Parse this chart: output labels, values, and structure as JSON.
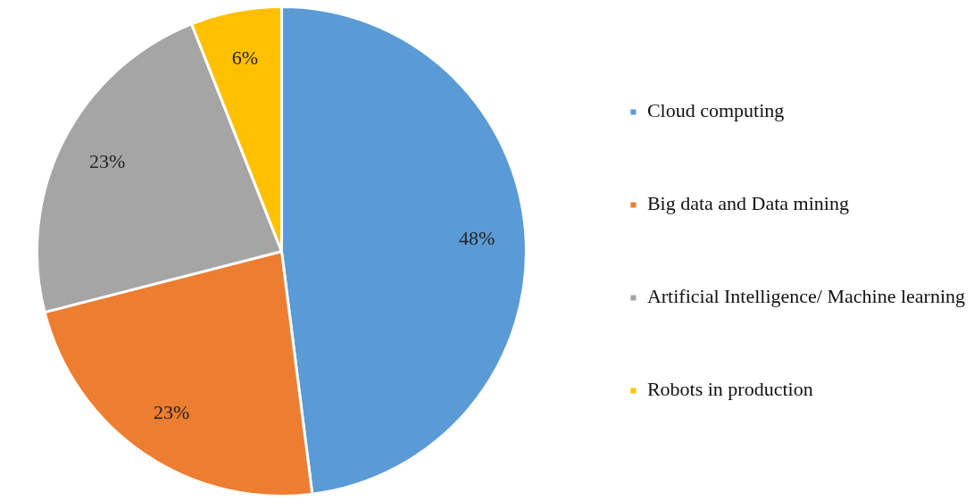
{
  "chart_data": {
    "type": "pie",
    "categories": [
      "Cloud computing",
      "Big data and Data mining",
      "Artificial Intelligence/ Machine learning",
      "Robots in production"
    ],
    "values": [
      48,
      23,
      23,
      6
    ],
    "colors": [
      "#5b9bd5",
      "#ed7d31",
      "#a5a5a5",
      "#ffc000"
    ],
    "value_labels": [
      "48%",
      "23%",
      "23%",
      "6%"
    ],
    "legend": "right"
  }
}
